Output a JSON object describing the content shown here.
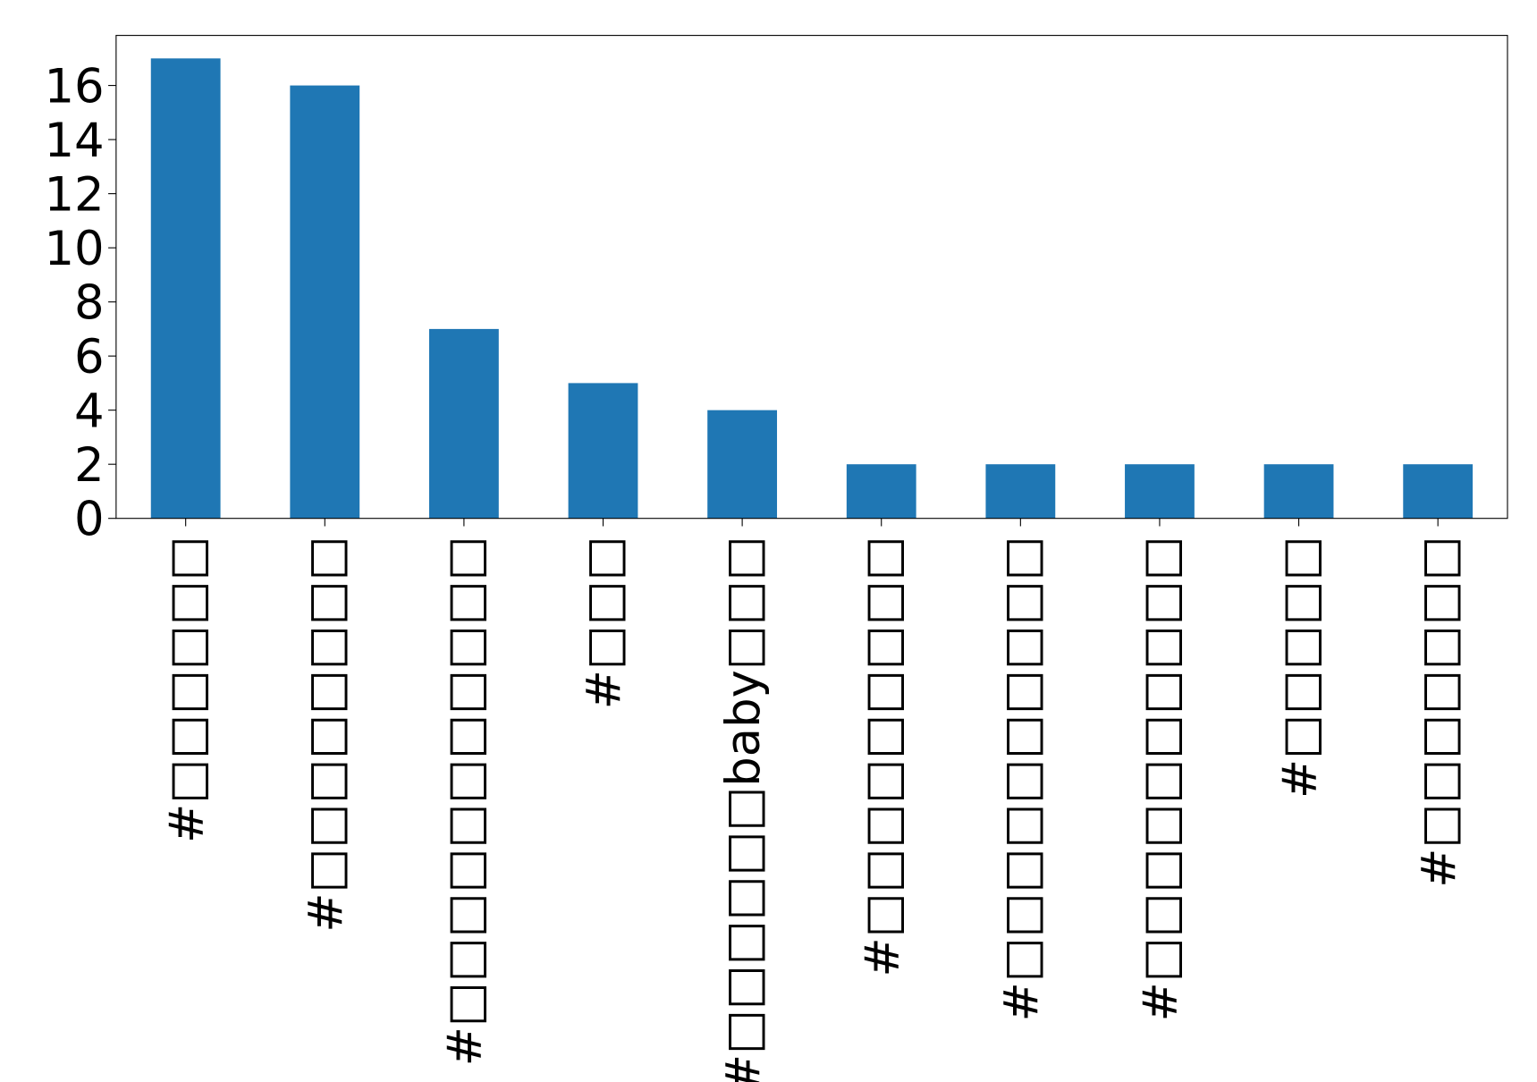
{
  "chart_data": {
    "type": "bar",
    "categories": [
      "#□□□□□□",
      "#□□□□□□□□",
      "#□□□□□□□□□□□",
      "#□□□",
      "#□□□□□□baby□□□",
      "#□□□□□□□□□",
      "#□□□□□□□□□□",
      "#□□□□□□□□□□",
      "#□□□□□",
      "#□□□□□□□"
    ],
    "values": [
      17,
      16,
      7,
      5,
      4,
      2,
      2,
      2,
      2,
      2
    ],
    "color": "#1f77b4",
    "ylim": [
      0,
      17.85
    ],
    "yticks": [
      0,
      2,
      4,
      6,
      8,
      10,
      12,
      14,
      16
    ]
  }
}
